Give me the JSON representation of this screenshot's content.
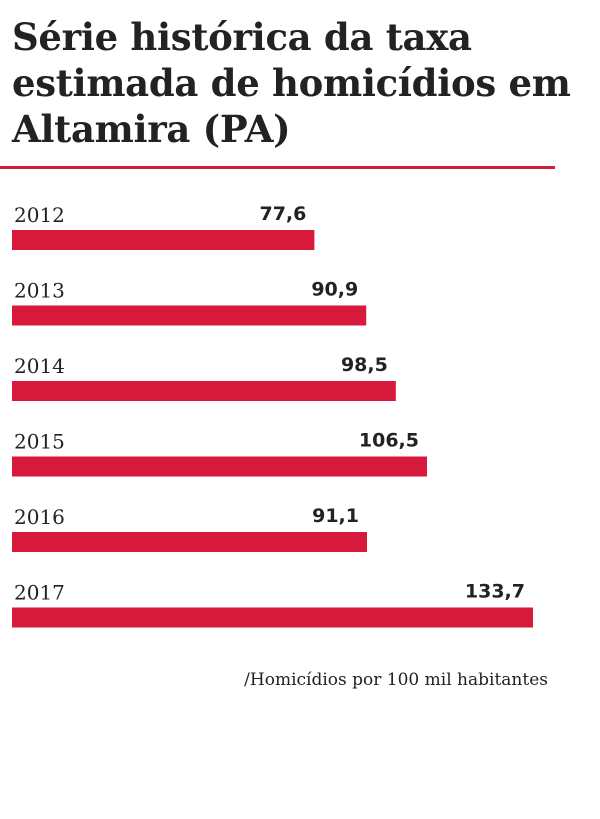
{
  "title": "Série histórica da taxa estimada de homicídios em Altamira (PA)",
  "footnote": "/Homicídios por 100 mil habitantes",
  "colors": {
    "bar": "#d71a3b",
    "rule": "#cf1f3a",
    "text": "#222222"
  },
  "chart_data": {
    "type": "bar",
    "orientation": "horizontal",
    "title": "Série histórica da taxa estimada de homicídios em Altamira (PA)",
    "categories": [
      "2012",
      "2013",
      "2014",
      "2015",
      "2016",
      "2017"
    ],
    "values": [
      77.6,
      90.9,
      98.5,
      106.5,
      91.1,
      133.7
    ],
    "value_labels": [
      "77,6",
      "90,9",
      "98,5",
      "106,5",
      "91,1",
      "133,7"
    ],
    "unit_note": "/Homicídios por 100 mil habitantes",
    "xlim": [
      0,
      133.7
    ],
    "grid": false,
    "legend": "none"
  }
}
